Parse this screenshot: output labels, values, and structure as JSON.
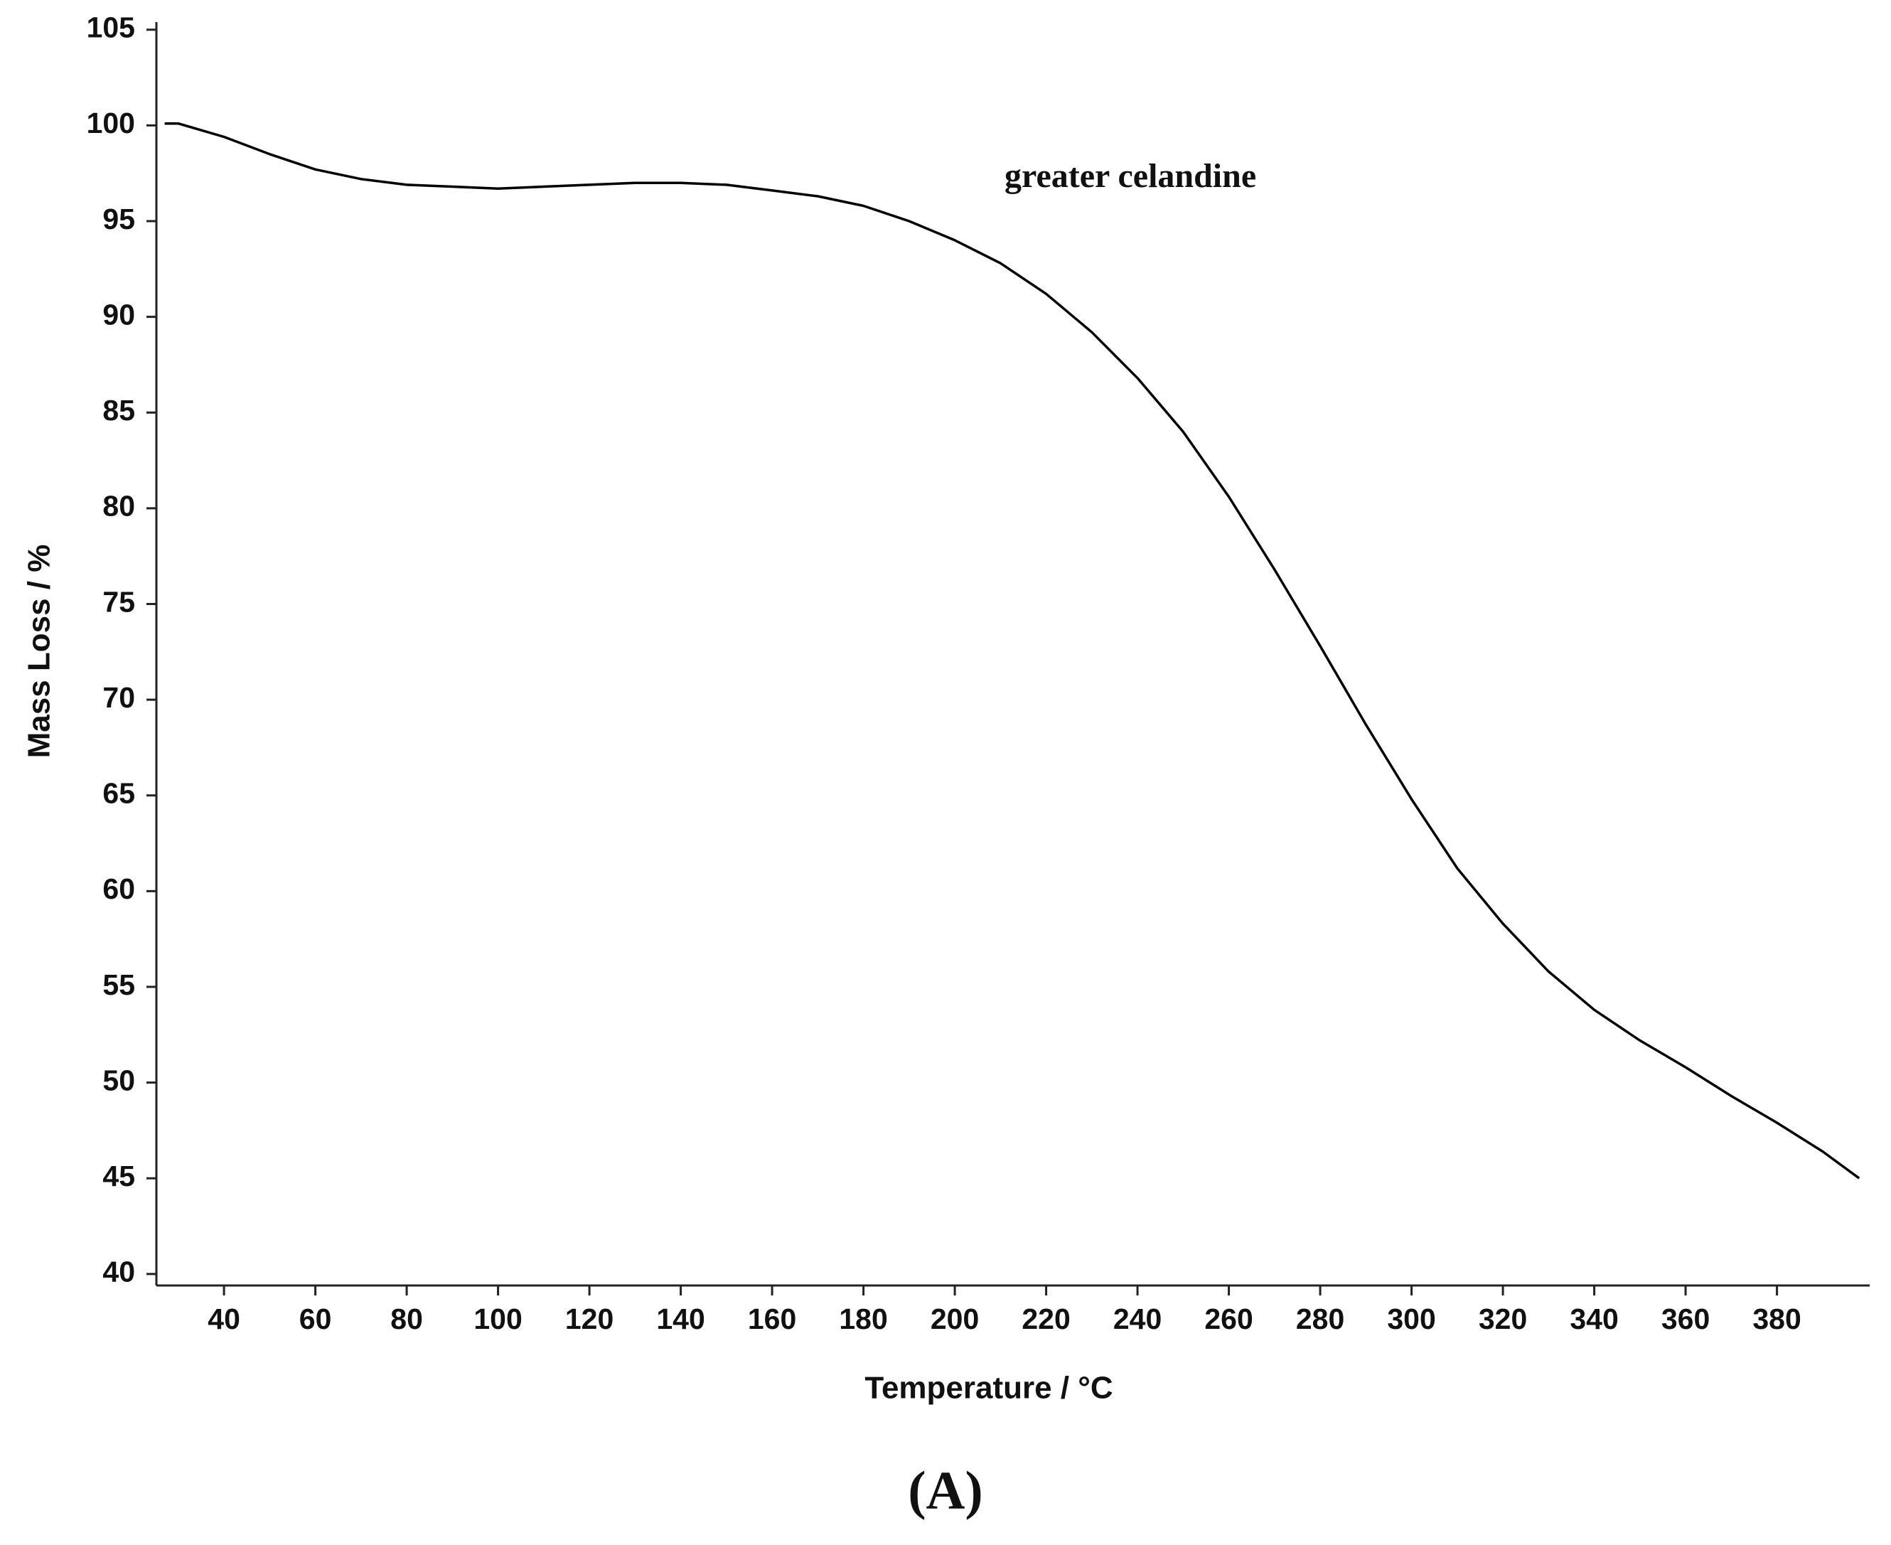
{
  "chart_data": {
    "type": "line",
    "caption": "(A)",
    "annotation": "greater celandine",
    "x_label": "Temperature / °C",
    "y_label": "Mass Loss / %",
    "x": [
      27,
      30,
      40,
      50,
      60,
      70,
      80,
      90,
      100,
      110,
      120,
      130,
      140,
      150,
      160,
      170,
      180,
      190,
      200,
      210,
      220,
      230,
      240,
      250,
      260,
      270,
      280,
      290,
      300,
      310,
      320,
      330,
      340,
      350,
      360,
      370,
      380,
      390,
      398
    ],
    "series": [
      {
        "color": "#000000",
        "values": [
          100.1,
          100.1,
          99.4,
          98.5,
          97.7,
          97.2,
          96.9,
          96.8,
          96.7,
          96.8,
          96.9,
          97.0,
          97.0,
          96.9,
          96.6,
          96.3,
          95.8,
          95.0,
          94.0,
          92.8,
          91.2,
          89.2,
          86.8,
          84.0,
          80.6,
          76.8,
          72.8,
          68.7,
          64.8,
          61.2,
          58.3,
          55.8,
          53.8,
          52.2,
          50.8,
          49.3,
          47.9,
          46.4,
          45.0
        ]
      }
    ],
    "xlim": [
      25.2,
      400.3
    ],
    "ylim": [
      39.4,
      105.4
    ],
    "xticks": [
      40,
      60,
      80,
      100,
      120,
      140,
      160,
      180,
      200,
      220,
      240,
      260,
      280,
      300,
      320,
      340,
      360,
      380
    ],
    "yticks": [
      40,
      45,
      50,
      55,
      60,
      65,
      70,
      75,
      80,
      85,
      90,
      95,
      100,
      105
    ]
  }
}
